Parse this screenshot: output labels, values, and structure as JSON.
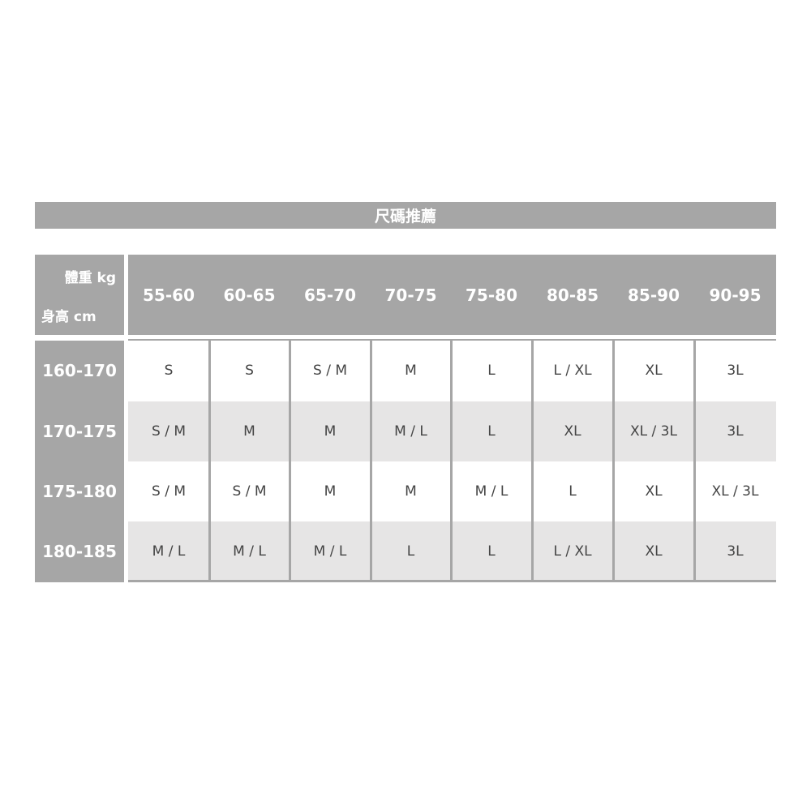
{
  "title": "尺碼推薦",
  "corner": {
    "weight_label": "體重 kg",
    "height_label": "身高 cm"
  },
  "weights": [
    "55-60",
    "60-65",
    "65-70",
    "70-75",
    "75-80",
    "80-85",
    "85-90",
    "90-95"
  ],
  "rows": [
    {
      "height": "160-170",
      "sizes": [
        "S",
        "S",
        "S / M",
        "M",
        "L",
        "L / XL",
        "XL",
        "3L"
      ]
    },
    {
      "height": "170-175",
      "sizes": [
        "S / M",
        "M",
        "M",
        "M / L",
        "L",
        "XL",
        "XL / 3L",
        "3L"
      ]
    },
    {
      "height": "175-180",
      "sizes": [
        "S / M",
        "S / M",
        "M",
        "M",
        "M / L",
        "L",
        "XL",
        "XL / 3L"
      ]
    },
    {
      "height": "180-185",
      "sizes": [
        "M / L",
        "M / L",
        "M / L",
        "L",
        "L",
        "L / XL",
        "XL",
        "3L"
      ]
    }
  ],
  "colors": {
    "header_gray": "#a6a6a6",
    "alt_row": "#e6e5e5"
  }
}
